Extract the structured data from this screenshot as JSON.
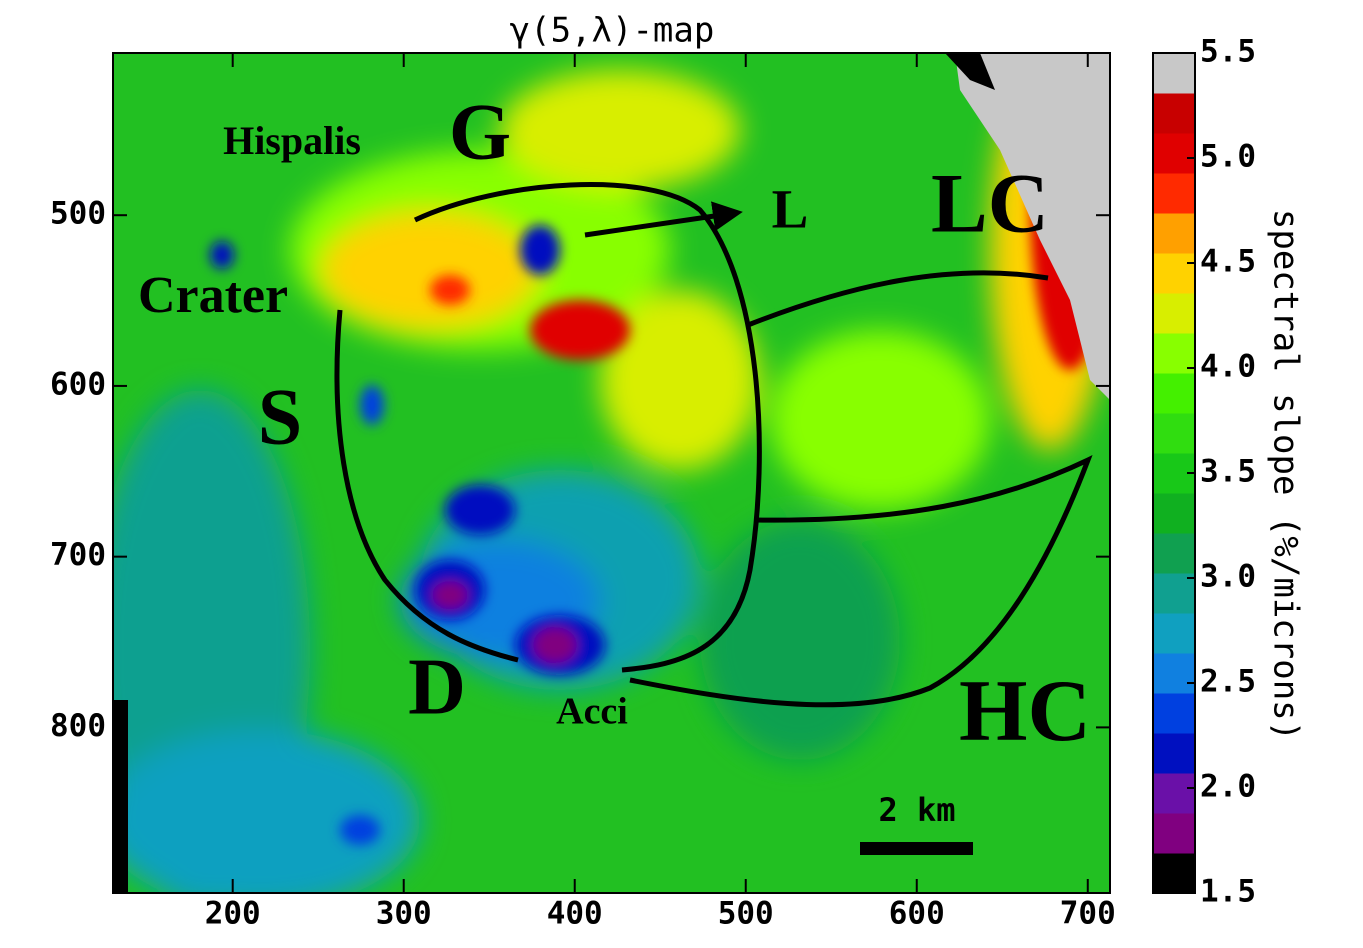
{
  "chart_data": {
    "type": "heatmap",
    "title": "γ(5,λ)-map",
    "xlim": [
      130,
      713
    ],
    "xticks": [
      200,
      300,
      400,
      500,
      600,
      700
    ],
    "ylim": [
      897,
      405
    ],
    "yticks": [
      500,
      600,
      700,
      800
    ],
    "colorbar": {
      "label": "spectral slope (%/microns)",
      "clim": [
        1.5,
        5.5
      ],
      "cticks": [
        1.5,
        {
          "value": 2,
          "label": "2.0"
        },
        2.5,
        {
          "value": 3,
          "label": "3.0"
        },
        3.5,
        {
          "value": 4,
          "label": "4.0"
        },
        4.5,
        {
          "value": 5,
          "label": "5.0"
        },
        5.5
      ],
      "colors": [
        "#000000",
        "#800080",
        "#6a10a8",
        "#0010c0",
        "#0040e0",
        "#1080e0",
        "#10a0c0",
        "#10a090",
        "#10a050",
        "#10b020",
        "#18c818",
        "#30dd10",
        "#44f000",
        "#88ff00",
        "#d8ee00",
        "#ffd200",
        "#ffa000",
        "#ff2a00",
        "#e00000",
        "#c80000",
        "#c8c8c8"
      ]
    },
    "annotations": [
      "Hispalis",
      "G",
      "L",
      "LC",
      "Crater",
      "S",
      "D",
      "Acci",
      "HC",
      "2 km"
    ]
  }
}
